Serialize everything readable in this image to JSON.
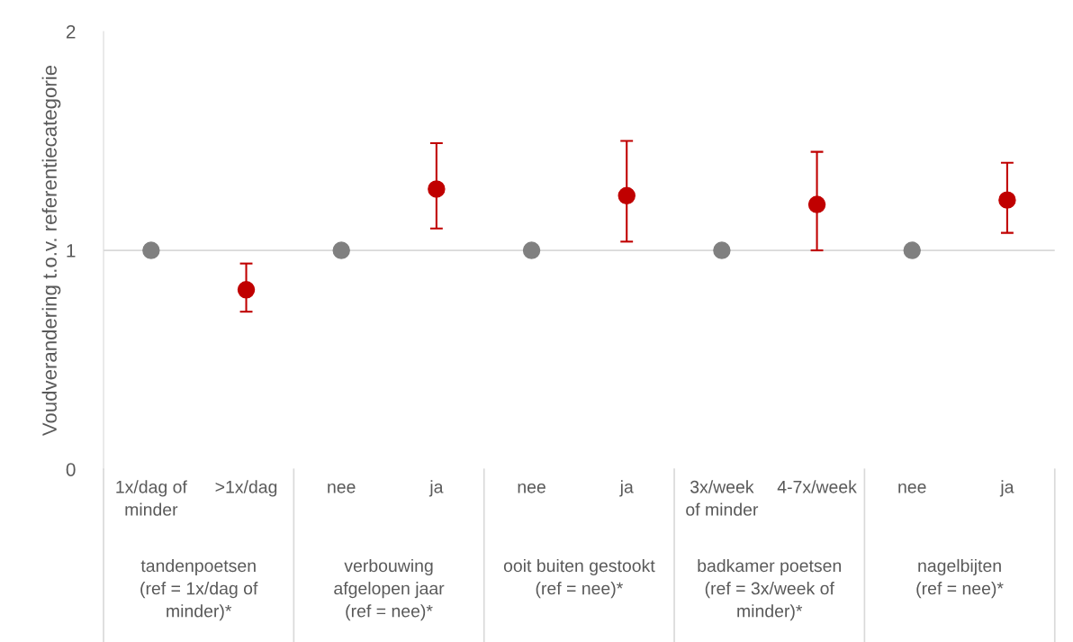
{
  "chart_data": {
    "type": "scatter",
    "ylabel": "Voudverandering t.o.v. referentiecategorie",
    "categories": [
      "1x/dag of\nminder",
      ">1x/dag",
      "nee",
      "ja",
      "nee",
      "ja",
      "3x/week\nof minder",
      "4-7x/week",
      "nee",
      "ja"
    ],
    "series": [
      {
        "color": "#808080",
        "values": [
          1,
          null,
          1,
          null,
          1,
          null,
          1,
          null,
          1,
          null
        ]
      },
      {
        "color": "#c00000",
        "values": [
          null,
          0.82,
          null,
          1.28,
          null,
          1.25,
          null,
          1.21,
          null,
          1.23
        ],
        "errors": [
          null,
          [
            0.72,
            0.94
          ],
          null,
          [
            1.1,
            1.49
          ],
          null,
          [
            1.04,
            1.5
          ],
          null,
          [
            1.0,
            1.45
          ],
          null,
          [
            1.08,
            1.4
          ]
        ]
      }
    ],
    "ylim": [
      0,
      2
    ],
    "yticks": [
      0,
      1,
      2
    ],
    "ref_lines": [
      {
        "axis": "y",
        "value": 1,
        "color": "#d9d9d9"
      }
    ],
    "marker": "circle",
    "annotations": [
      "tandenpoetsen\n(ref = 1x/dag of\nminder)*",
      "verbouwing\nafgelopen jaar\n(ref = nee)*",
      "ooit buiten gestookt\n(ref = nee)*",
      "badkamer poetsen\n(ref = 3x/week of\nminder)*",
      "nagelbijten\n(ref = nee)*"
    ]
  }
}
